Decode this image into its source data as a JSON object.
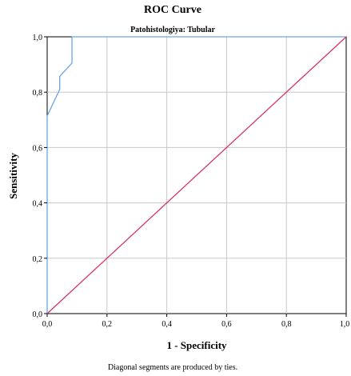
{
  "chart_data": {
    "type": "line",
    "title": "ROC Curve",
    "subtitle": "Patohistologiya: Tubular",
    "xlabel": "1 - Specificity",
    "ylabel": "Sensitivity",
    "xlim": [
      0,
      1
    ],
    "ylim": [
      0,
      1
    ],
    "x_ticks": [
      "0,0",
      "0,2",
      "0,4",
      "0,6",
      "0,8",
      "1,0"
    ],
    "y_ticks": [
      "0,0",
      "0,2",
      "0,4",
      "0,6",
      "0,8",
      "1,0"
    ],
    "grid": true,
    "footnote": "Diagonal segments are produced by ties.",
    "series": [
      {
        "color": "#6aa6e6",
        "points": [
          [
            0,
            0
          ],
          [
            0,
            0.714
          ],
          [
            0.042,
            0.81
          ],
          [
            0.042,
            0.857
          ],
          [
            0.083,
            0.905
          ],
          [
            0.083,
            1.0
          ],
          [
            1.0,
            1.0
          ]
        ]
      },
      {
        "color": "#d6336c",
        "points": [
          [
            0,
            0
          ],
          [
            1,
            1
          ]
        ]
      }
    ]
  }
}
